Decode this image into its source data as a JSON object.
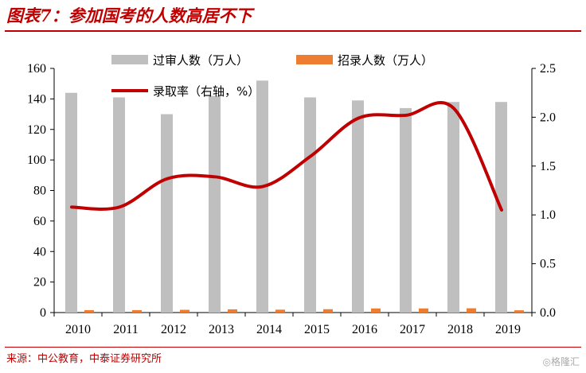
{
  "header": {
    "title": "图表7：参加国考的人数高居不下"
  },
  "footer": {
    "source": "来源：中公教育，中泰证券研究所",
    "watermark": "◎格隆汇"
  },
  "chart_data": {
    "type": "bar",
    "categories": [
      "2010",
      "2011",
      "2012",
      "2013",
      "2014",
      "2015",
      "2016",
      "2017",
      "2018",
      "2019"
    ],
    "series": [
      {
        "name": "过审人数（万人）",
        "type": "bar",
        "axis": "left",
        "color": "#bfbfbf",
        "values": [
          144,
          141,
          130,
          142,
          152,
          141,
          139,
          134,
          138,
          138
        ]
      },
      {
        "name": "招录人数（万人）",
        "type": "bar",
        "axis": "left",
        "color": "#ed7d31",
        "values": [
          1.6,
          1.6,
          1.8,
          2.1,
          1.9,
          2.2,
          2.7,
          2.7,
          2.8,
          1.5
        ]
      },
      {
        "name": "录取率（右轴，%）",
        "type": "line",
        "axis": "right",
        "color": "#c00000",
        "values": [
          1.08,
          1.08,
          1.37,
          1.39,
          1.29,
          1.6,
          1.99,
          2.02,
          2.09,
          1.05
        ]
      }
    ],
    "yleft": {
      "min": 0,
      "max": 160,
      "ticks": [
        0,
        20,
        40,
        60,
        80,
        100,
        120,
        140,
        160
      ]
    },
    "yright": {
      "min": 0,
      "max": 2.5,
      "ticks": [
        "0.0",
        "0.5",
        "1.0",
        "1.5",
        "2.0",
        "2.5"
      ]
    },
    "legend_position": "top"
  }
}
